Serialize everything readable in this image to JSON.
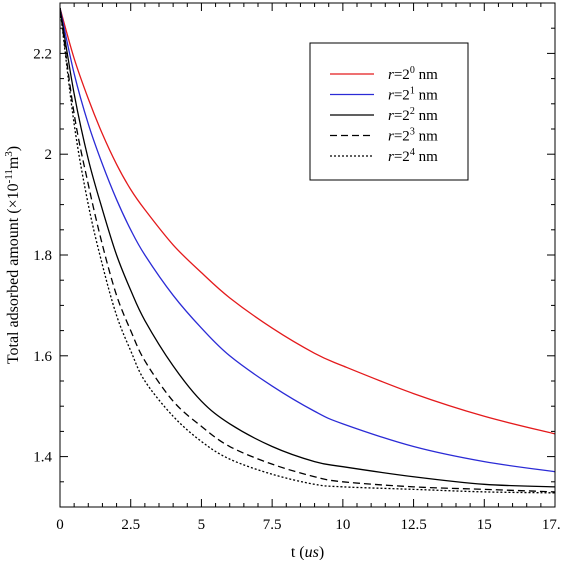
{
  "chart_data": {
    "type": "line",
    "title": "",
    "xlabel": "t",
    "xlabel_unit": "us",
    "ylabel": "Total adsorbed amount",
    "ylabel_unit": "(×10^-11 m^3)",
    "xlim": [
      0,
      17.5
    ],
    "ylim": [
      1.3,
      2.3
    ],
    "x_ticks": [
      0,
      2.5,
      5,
      7.5,
      10,
      12.5,
      15,
      17.5
    ],
    "x_tick_labels": [
      "0",
      "2.5",
      "5",
      "7.5",
      "10",
      "12.5",
      "15",
      "17.5"
    ],
    "y_ticks": [
      1.4,
      1.6,
      1.8,
      2.0,
      2.2
    ],
    "y_tick_labels": [
      "1.4",
      "1.6",
      "1.8",
      "2",
      "2.2"
    ],
    "grid": false,
    "legend_position": "top-right",
    "x": [
      0,
      0.5,
      1,
      1.5,
      2,
      2.5,
      3,
      4,
      5,
      6,
      7.5,
      9,
      10,
      12.5,
      15,
      17.5
    ],
    "series": [
      {
        "name": "r=2^0 nm",
        "legend": {
          "var": "r",
          "eq": "=2",
          "exp": "0",
          "unit": " nm"
        },
        "color": "#e41a1c",
        "dash": "solid",
        "values": [
          2.29,
          2.19,
          2.11,
          2.04,
          1.98,
          1.93,
          1.89,
          1.82,
          1.765,
          1.715,
          1.655,
          1.605,
          1.58,
          1.525,
          1.48,
          1.445
        ]
      },
      {
        "name": "r=2^1 nm",
        "legend": {
          "var": "r",
          "eq": "=2",
          "exp": "1",
          "unit": " nm"
        },
        "color": "#2b2bd6",
        "dash": "solid",
        "values": [
          2.29,
          2.16,
          2.06,
          1.98,
          1.91,
          1.85,
          1.8,
          1.72,
          1.655,
          1.6,
          1.54,
          1.49,
          1.465,
          1.42,
          1.39,
          1.37
        ]
      },
      {
        "name": "r=2^2 nm",
        "legend": {
          "var": "r",
          "eq": "=2",
          "exp": "2",
          "unit": " nm"
        },
        "color": "#000000",
        "dash": "solid",
        "values": [
          2.29,
          2.12,
          1.99,
          1.89,
          1.8,
          1.73,
          1.67,
          1.58,
          1.51,
          1.465,
          1.42,
          1.39,
          1.38,
          1.36,
          1.345,
          1.34
        ]
      },
      {
        "name": "r=2^3 nm",
        "legend": {
          "var": "r",
          "eq": "=2",
          "exp": "3",
          "unit": " nm"
        },
        "color": "#000000",
        "dash": "dashed",
        "values": [
          2.29,
          2.08,
          1.94,
          1.82,
          1.72,
          1.65,
          1.59,
          1.51,
          1.46,
          1.42,
          1.385,
          1.36,
          1.35,
          1.34,
          1.335,
          1.33
        ]
      },
      {
        "name": "r=2^4 nm",
        "legend": {
          "var": "r",
          "eq": "=2",
          "exp": "4",
          "unit": " nm"
        },
        "color": "#000000",
        "dash": "dotted",
        "values": [
          2.29,
          2.06,
          1.9,
          1.78,
          1.68,
          1.61,
          1.55,
          1.48,
          1.43,
          1.395,
          1.365,
          1.345,
          1.34,
          1.335,
          1.33,
          1.328
        ]
      }
    ]
  }
}
